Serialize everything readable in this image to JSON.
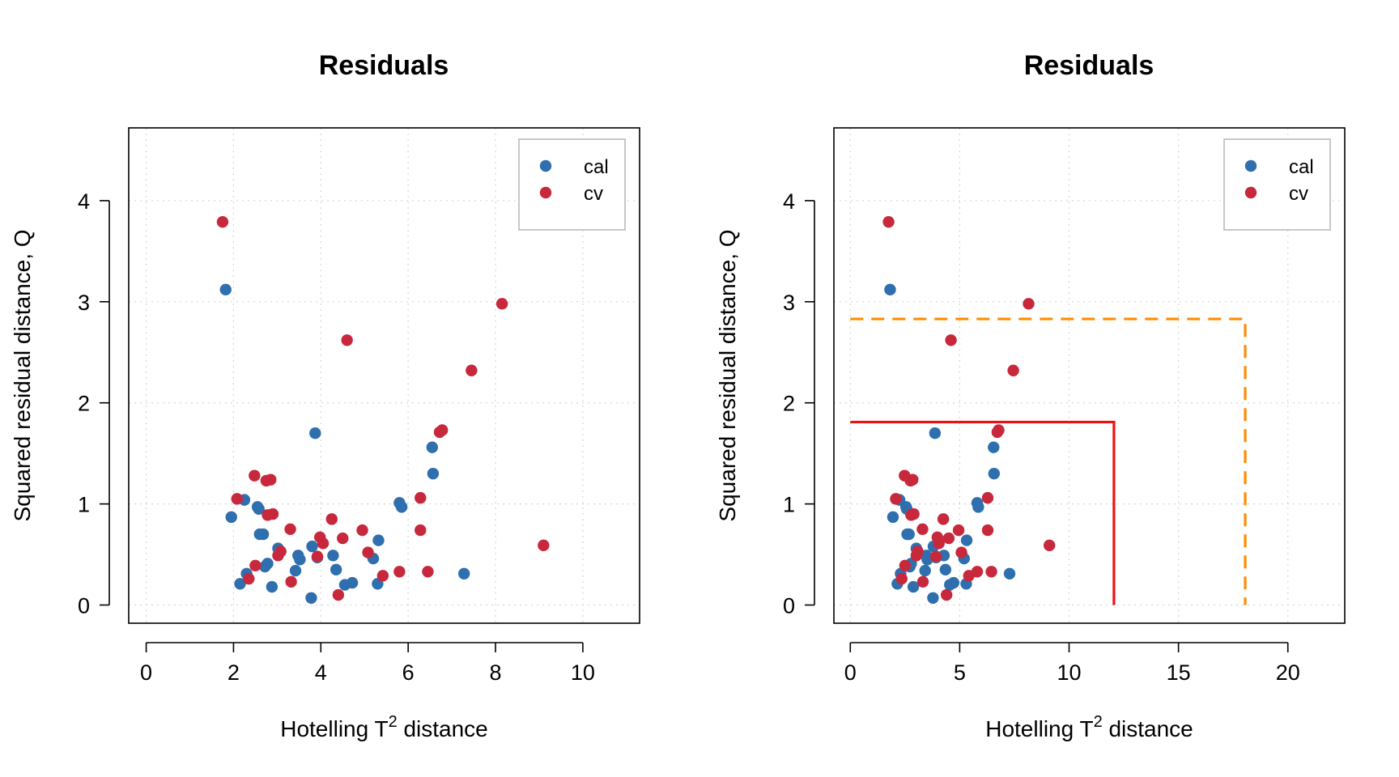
{
  "chart_data": [
    {
      "type": "scatter",
      "title": "Residuals",
      "xlabel": "Hotelling T",
      "xlabel_sup": "2",
      "xlabel_suffix": " distance",
      "ylabel": "Squared residual distance, Q",
      "xlim": [
        -0.4,
        11.3
      ],
      "ylim": [
        -0.18,
        4.72
      ],
      "xticks": [
        0,
        2,
        4,
        6,
        8,
        10
      ],
      "yticks": [
        0,
        1,
        2,
        3,
        4
      ],
      "grid": true,
      "legend_position": "top-right",
      "series": [
        {
          "name": "cal",
          "color": "#2F6FAE",
          "points": [
            [
              1.82,
              3.12
            ],
            [
              1.95,
              0.87
            ],
            [
              2.15,
              0.21
            ],
            [
              2.25,
              1.04
            ],
            [
              2.3,
              0.31
            ],
            [
              2.55,
              0.97
            ],
            [
              2.58,
              0.95
            ],
            [
              2.6,
              0.7
            ],
            [
              2.68,
              0.7
            ],
            [
              2.72,
              0.38
            ],
            [
              2.78,
              0.41
            ],
            [
              2.88,
              0.18
            ],
            [
              3.02,
              0.56
            ],
            [
              3.42,
              0.34
            ],
            [
              3.48,
              0.49
            ],
            [
              3.52,
              0.45
            ],
            [
              3.78,
              0.07
            ],
            [
              3.8,
              0.58
            ],
            [
              3.87,
              1.7
            ],
            [
              3.92,
              0.47
            ],
            [
              4.28,
              0.49
            ],
            [
              4.35,
              0.35
            ],
            [
              4.55,
              0.2
            ],
            [
              4.72,
              0.22
            ],
            [
              5.2,
              0.46
            ],
            [
              5.3,
              0.21
            ],
            [
              5.32,
              0.64
            ],
            [
              5.8,
              1.01
            ],
            [
              5.85,
              0.97
            ],
            [
              6.55,
              1.56
            ],
            [
              6.57,
              1.3
            ],
            [
              7.28,
              0.31
            ]
          ]
        },
        {
          "name": "cv",
          "color": "#C8283C",
          "points": [
            [
              1.75,
              3.79
            ],
            [
              2.08,
              1.05
            ],
            [
              2.35,
              0.26
            ],
            [
              2.48,
              1.28
            ],
            [
              2.5,
              0.39
            ],
            [
              2.75,
              1.23
            ],
            [
              2.78,
              0.89
            ],
            [
              2.85,
              1.24
            ],
            [
              2.9,
              0.9
            ],
            [
              3.02,
              0.49
            ],
            [
              3.08,
              0.53
            ],
            [
              3.3,
              0.75
            ],
            [
              3.32,
              0.23
            ],
            [
              3.92,
              0.48
            ],
            [
              3.98,
              0.67
            ],
            [
              4.05,
              0.61
            ],
            [
              4.25,
              0.85
            ],
            [
              4.4,
              0.1
            ],
            [
              4.5,
              0.66
            ],
            [
              4.6,
              2.62
            ],
            [
              4.95,
              0.74
            ],
            [
              5.08,
              0.52
            ],
            [
              5.42,
              0.29
            ],
            [
              5.8,
              0.33
            ],
            [
              6.28,
              1.06
            ],
            [
              6.28,
              0.74
            ],
            [
              6.45,
              0.33
            ],
            [
              6.72,
              1.71
            ],
            [
              6.78,
              1.73
            ],
            [
              7.45,
              2.32
            ],
            [
              8.15,
              2.98
            ],
            [
              9.1,
              0.59
            ]
          ]
        }
      ],
      "legend": [
        "cal",
        "cv"
      ]
    },
    {
      "type": "scatter",
      "title": "Residuals",
      "xlabel": "Hotelling T",
      "xlabel_sup": "2",
      "xlabel_suffix": " distance",
      "ylabel": "Squared residual distance, Q",
      "xlim": [
        -0.75,
        22.6
      ],
      "ylim": [
        -0.18,
        4.72
      ],
      "xticks": [
        0,
        5,
        10,
        15,
        20
      ],
      "yticks": [
        0,
        1,
        2,
        3,
        4
      ],
      "grid": true,
      "legend_position": "top-right",
      "series": [
        {
          "name": "cal",
          "color": "#2F6FAE",
          "points": [
            [
              1.82,
              3.12
            ],
            [
              1.95,
              0.87
            ],
            [
              2.15,
              0.21
            ],
            [
              2.25,
              1.04
            ],
            [
              2.3,
              0.31
            ],
            [
              2.55,
              0.97
            ],
            [
              2.58,
              0.95
            ],
            [
              2.6,
              0.7
            ],
            [
              2.68,
              0.7
            ],
            [
              2.72,
              0.38
            ],
            [
              2.78,
              0.41
            ],
            [
              2.88,
              0.18
            ],
            [
              3.02,
              0.56
            ],
            [
              3.42,
              0.34
            ],
            [
              3.48,
              0.49
            ],
            [
              3.52,
              0.45
            ],
            [
              3.78,
              0.07
            ],
            [
              3.8,
              0.58
            ],
            [
              3.87,
              1.7
            ],
            [
              3.92,
              0.47
            ],
            [
              4.28,
              0.49
            ],
            [
              4.35,
              0.35
            ],
            [
              4.55,
              0.2
            ],
            [
              4.72,
              0.22
            ],
            [
              5.2,
              0.46
            ],
            [
              5.3,
              0.21
            ],
            [
              5.32,
              0.64
            ],
            [
              5.8,
              1.01
            ],
            [
              5.85,
              0.97
            ],
            [
              6.55,
              1.56
            ],
            [
              6.57,
              1.3
            ],
            [
              7.28,
              0.31
            ]
          ]
        },
        {
          "name": "cv",
          "color": "#C8283C",
          "points": [
            [
              1.75,
              3.79
            ],
            [
              2.08,
              1.05
            ],
            [
              2.35,
              0.26
            ],
            [
              2.48,
              1.28
            ],
            [
              2.5,
              0.39
            ],
            [
              2.75,
              1.23
            ],
            [
              2.78,
              0.89
            ],
            [
              2.85,
              1.24
            ],
            [
              2.9,
              0.9
            ],
            [
              3.02,
              0.49
            ],
            [
              3.08,
              0.53
            ],
            [
              3.3,
              0.75
            ],
            [
              3.32,
              0.23
            ],
            [
              3.92,
              0.48
            ],
            [
              3.98,
              0.67
            ],
            [
              4.05,
              0.61
            ],
            [
              4.25,
              0.85
            ],
            [
              4.4,
              0.1
            ],
            [
              4.5,
              0.66
            ],
            [
              4.6,
              2.62
            ],
            [
              4.95,
              0.74
            ],
            [
              5.08,
              0.52
            ],
            [
              5.42,
              0.29
            ],
            [
              5.8,
              0.33
            ],
            [
              6.28,
              1.06
            ],
            [
              6.28,
              0.74
            ],
            [
              6.45,
              0.33
            ],
            [
              6.72,
              1.71
            ],
            [
              6.78,
              1.73
            ],
            [
              7.45,
              2.32
            ],
            [
              8.15,
              2.98
            ],
            [
              9.1,
              0.59
            ]
          ]
        }
      ],
      "limits": [
        {
          "style": "solid",
          "color": "#EE1111",
          "t2": 12.05,
          "q": 1.81
        },
        {
          "style": "dashed",
          "color": "#FF8C00",
          "t2": 18.05,
          "q": 2.83
        }
      ],
      "legend": [
        "cal",
        "cv"
      ]
    }
  ]
}
